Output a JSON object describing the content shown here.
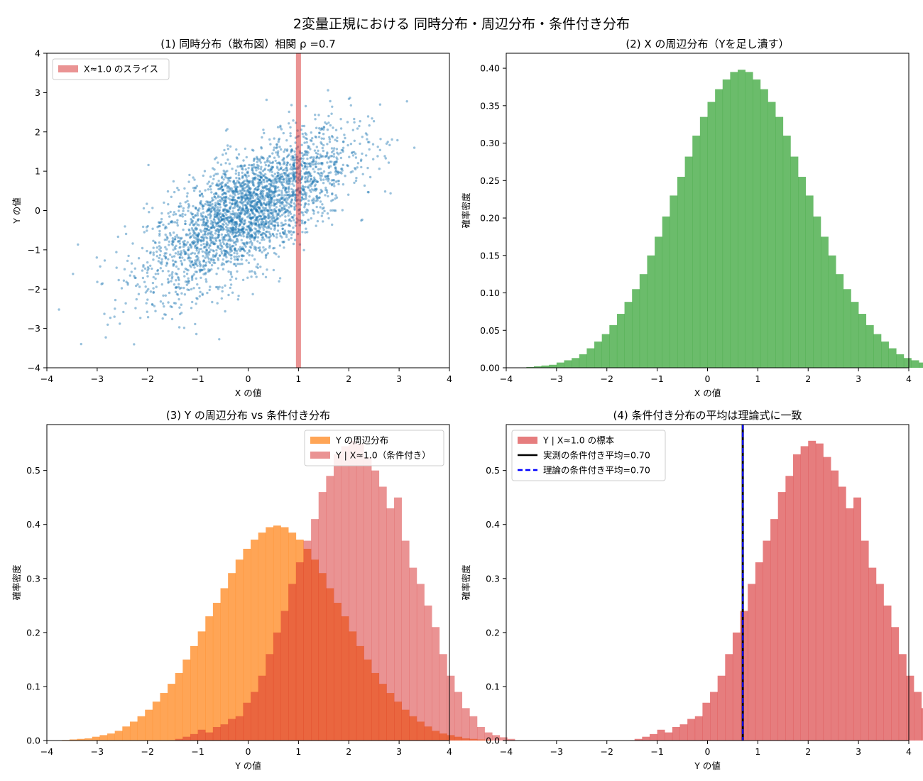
{
  "figure_title": "2変量正規における 同時分布・周辺分布・条件付き分布",
  "colors": {
    "scatter": "#1f77b4",
    "slice": "#d62728",
    "marginal_x": "#2ca02c",
    "marginal_y": "#ff7f0e",
    "conditional": "#d62728",
    "empirical_mean": "#000000",
    "theory_mean": "#0000ff"
  },
  "chart_data": [
    {
      "type": "scatter",
      "title": "(1) 同時分布（散布図）相関 ρ =0.7",
      "xlabel": "X の値",
      "ylabel": "Y の値",
      "xlim": [
        -4,
        4
      ],
      "ylim": [
        -4,
        4
      ],
      "xticks": [
        -4,
        -3,
        -2,
        -1,
        0,
        1,
        2,
        3,
        4
      ],
      "yticks": [
        -4,
        -3,
        -2,
        -1,
        0,
        1,
        2,
        3,
        4
      ],
      "correlation": 0.7,
      "n_points": 3000,
      "slice": {
        "center": 1.0,
        "half_width": 0.05
      },
      "legend": [
        {
          "label": "X≈1.0 のスライス",
          "color": "#d62728"
        }
      ],
      "legend_loc": "upper left",
      "grid": false
    },
    {
      "type": "bar",
      "title": "(2) X の周辺分布（Yを足し潰す）",
      "xlabel": "X の値",
      "ylabel": "確率密度",
      "xlim": [
        -4,
        4
      ],
      "ylim": [
        0,
        0.42
      ],
      "xticks": [
        -4,
        -3,
        -2,
        -1,
        0,
        1,
        2,
        3,
        4
      ],
      "yticks": [
        0.0,
        0.05,
        0.1,
        0.15,
        0.2,
        0.25,
        0.3,
        0.35,
        0.4
      ],
      "ytick_labels": [
        "0.00",
        "0.05",
        "0.10",
        "0.15",
        "0.20",
        "0.25",
        "0.30",
        "0.35",
        "0.40"
      ],
      "bin_start": -3.6,
      "bin_width": 0.15,
      "values": [
        0.001,
        0.002,
        0.003,
        0.004,
        0.007,
        0.01,
        0.013,
        0.018,
        0.026,
        0.035,
        0.045,
        0.057,
        0.072,
        0.088,
        0.105,
        0.125,
        0.15,
        0.175,
        0.202,
        0.23,
        0.255,
        0.282,
        0.31,
        0.335,
        0.355,
        0.372,
        0.385,
        0.395,
        0.398,
        0.395,
        0.385,
        0.372,
        0.355,
        0.335,
        0.31,
        0.282,
        0.255,
        0.23,
        0.202,
        0.175,
        0.15,
        0.125,
        0.105,
        0.088,
        0.072,
        0.057,
        0.045,
        0.035,
        0.026,
        0.018,
        0.013,
        0.01,
        0.007,
        0.004,
        0.003,
        0.002,
        0.001
      ],
      "color": "#2ca02c",
      "grid": false
    },
    {
      "type": "bar",
      "title": "(3) Y の周辺分布 vs 条件付き分布",
      "xlabel": "Y の値",
      "ylabel": "確率密度",
      "xlim": [
        -4,
        4
      ],
      "ylim": [
        0,
        0.585
      ],
      "xticks": [
        -4,
        -3,
        -2,
        -1,
        0,
        1,
        2,
        3,
        4
      ],
      "yticks": [
        0.0,
        0.1,
        0.2,
        0.3,
        0.4,
        0.5
      ],
      "ytick_labels": [
        "0.0",
        "0.1",
        "0.2",
        "0.3",
        "0.4",
        "0.5"
      ],
      "series": [
        {
          "name": "Y の周辺分布",
          "color": "#ff7f0e",
          "bin_start": -3.7,
          "bin_width": 0.15,
          "values": [
            0.001,
            0.002,
            0.003,
            0.004,
            0.007,
            0.01,
            0.013,
            0.018,
            0.026,
            0.035,
            0.045,
            0.057,
            0.072,
            0.088,
            0.105,
            0.125,
            0.15,
            0.175,
            0.202,
            0.23,
            0.255,
            0.282,
            0.31,
            0.335,
            0.355,
            0.372,
            0.385,
            0.395,
            0.398,
            0.395,
            0.385,
            0.372,
            0.355,
            0.335,
            0.31,
            0.282,
            0.255,
            0.23,
            0.202,
            0.175,
            0.15,
            0.125,
            0.105,
            0.088,
            0.072,
            0.057,
            0.045,
            0.035,
            0.026,
            0.018,
            0.013,
            0.01,
            0.007,
            0.004,
            0.003,
            0.002,
            0.001
          ]
        },
        {
          "name": "Y | X≈1.0（条件付き）",
          "color": "#d62728",
          "bin_start": -1.45,
          "bin_width": 0.15,
          "values": [
            0.003,
            0.007,
            0.012,
            0.02,
            0.015,
            0.025,
            0.03,
            0.04,
            0.045,
            0.07,
            0.09,
            0.12,
            0.16,
            0.2,
            0.24,
            0.29,
            0.33,
            0.37,
            0.41,
            0.46,
            0.49,
            0.53,
            0.545,
            0.555,
            0.55,
            0.525,
            0.5,
            0.47,
            0.43,
            0.45,
            0.37,
            0.32,
            0.29,
            0.25,
            0.21,
            0.16,
            0.12,
            0.09,
            0.06,
            0.045,
            0.025,
            0.015,
            0.01,
            0.006,
            0.003
          ]
        }
      ],
      "legend_loc": "upper right",
      "grid": false
    },
    {
      "type": "bar",
      "title": "(4) 条件付き分布の平均は理論式に一致",
      "xlabel": "Y の値",
      "ylabel": "確率密度",
      "xlim": [
        -4,
        4
      ],
      "ylim": [
        0,
        0.585
      ],
      "xticks": [
        -4,
        -3,
        -2,
        -1,
        0,
        1,
        2,
        3,
        4
      ],
      "yticks": [
        0.0,
        0.1,
        0.2,
        0.3,
        0.4,
        0.5
      ],
      "ytick_labels": [
        "0.0",
        "0.1",
        "0.2",
        "0.3",
        "0.4",
        "0.5"
      ],
      "bin_start": -1.45,
      "bin_width": 0.15,
      "values": [
        0.003,
        0.007,
        0.012,
        0.02,
        0.015,
        0.025,
        0.03,
        0.04,
        0.045,
        0.07,
        0.09,
        0.12,
        0.16,
        0.2,
        0.24,
        0.29,
        0.33,
        0.37,
        0.41,
        0.46,
        0.49,
        0.53,
        0.545,
        0.555,
        0.55,
        0.525,
        0.5,
        0.47,
        0.43,
        0.45,
        0.37,
        0.32,
        0.29,
        0.25,
        0.21,
        0.16,
        0.12,
        0.09,
        0.06,
        0.045,
        0.025,
        0.015,
        0.01,
        0.006,
        0.003
      ],
      "color": "#d62728",
      "vlines": [
        {
          "x": 0.7,
          "label": "実測の条件付き平均=0.70",
          "color": "#000000",
          "style": "solid"
        },
        {
          "x": 0.7,
          "label": "理論の条件付き平均=0.70",
          "color": "#0000ff",
          "style": "dashed"
        }
      ],
      "legend": [
        {
          "label": "Y | X≈1.0 の標本",
          "color": "#d62728",
          "kind": "patch"
        },
        {
          "label": "実測の条件付き平均=0.70",
          "color": "#000000",
          "kind": "line"
        },
        {
          "label": "理論の条件付き平均=0.70",
          "color": "#0000ff",
          "kind": "dashed"
        }
      ],
      "legend_loc": "upper left",
      "grid": false
    }
  ]
}
